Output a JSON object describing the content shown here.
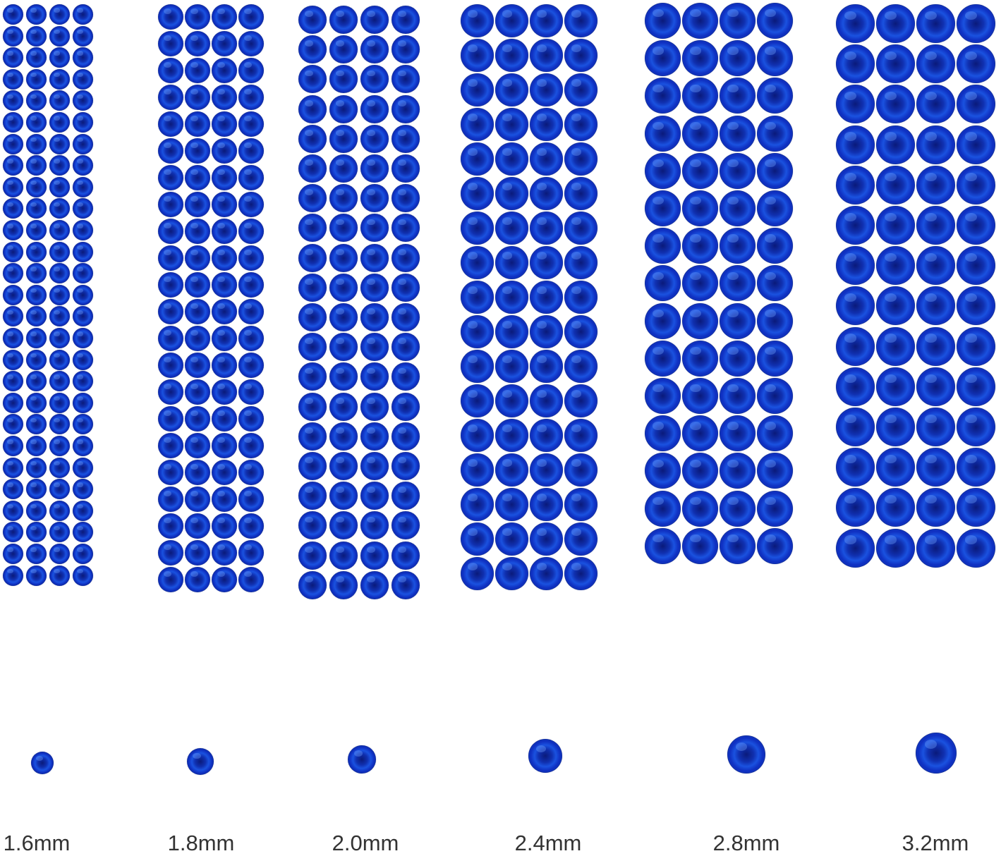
{
  "gem_color": "#1a3fd0",
  "sizes": [
    {
      "label": "1.6mm",
      "columns": 4,
      "rows": 27
    },
    {
      "label": "1.8mm",
      "columns": 4,
      "rows": 22
    },
    {
      "label": "2.0mm",
      "columns": 4,
      "rows": 20
    },
    {
      "label": "2.4mm",
      "columns": 4,
      "rows": 17
    },
    {
      "label": "2.8mm",
      "columns": 4,
      "rows": 15
    },
    {
      "label": "3.2mm",
      "columns": 4,
      "rows": 14
    }
  ]
}
